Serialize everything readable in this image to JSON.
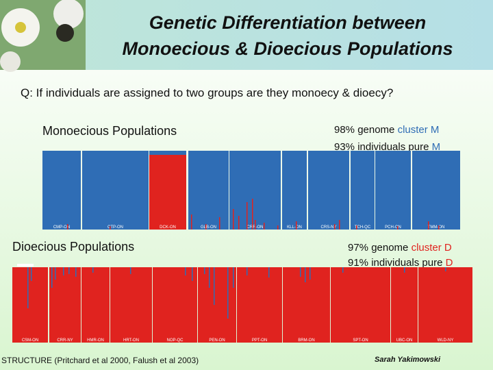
{
  "header": {
    "title_line1": "Genetic Differentiation between",
    "title_line2": "Monoecious & Dioecious Populations"
  },
  "question": "Q: If individuals are assigned to two groups are they monoecy & dioecy?",
  "monoecious": {
    "heading": "Monoecious Populations",
    "stats": [
      {
        "text": "98% genome ",
        "highlight": "cluster M"
      },
      {
        "text": "93% individuals pure ",
        "highlight": "M"
      }
    ],
    "populations": [
      "CMP-ON",
      "CTP-ON",
      "DCK-ON",
      "GLB-ON",
      "CRR-ON",
      "KLL-ON",
      "CRS-NY",
      "TCH-QC",
      "PCH-ON",
      "TMM-ON"
    ]
  },
  "dioecious": {
    "heading": "Dioecious Populations",
    "stats": [
      {
        "text": "97% genome ",
        "highlight": "cluster D"
      },
      {
        "text": "91% individuals pure ",
        "highlight": "D"
      }
    ],
    "populations": [
      "CSM-ON",
      "CRR-NY",
      "HMR-ON",
      "HRT-ON",
      "NOP-QC",
      "PEN-ON",
      "PPT-ON",
      "BRM-ON",
      "SPT-ON",
      "UBC-ON",
      "WLD-NY"
    ]
  },
  "footer": {
    "citation": "STRUCTURE (Pritchard et al 2000, Falush et al 2003)",
    "author": "Sarah Yakimowski"
  }
}
